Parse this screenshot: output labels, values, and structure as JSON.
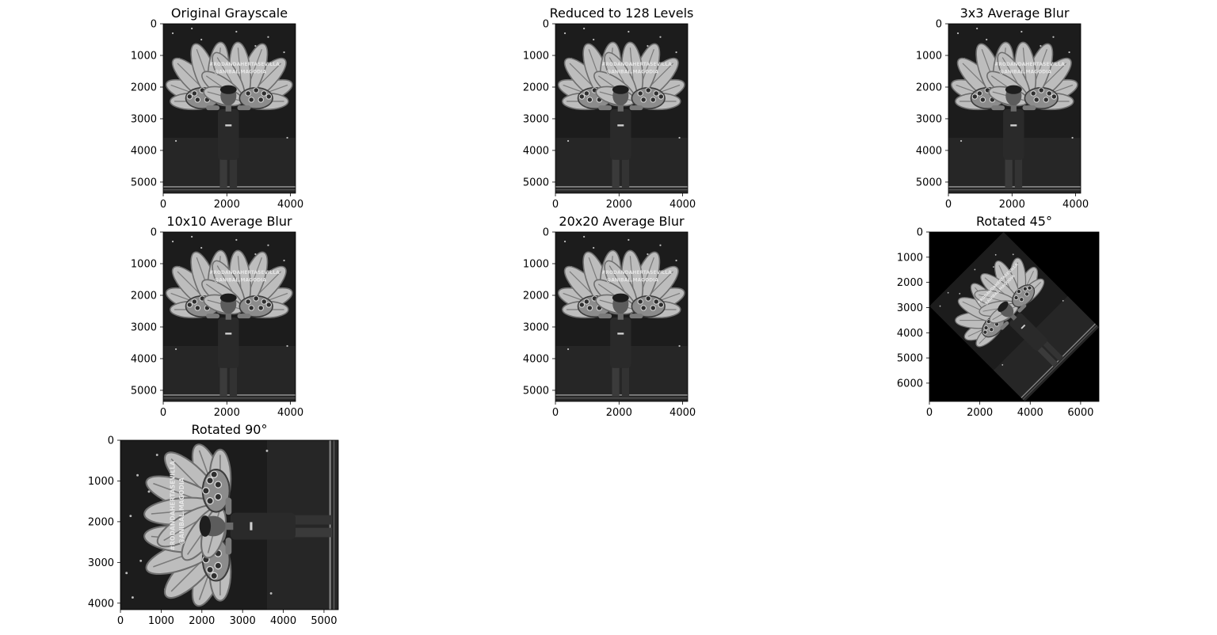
{
  "figure": {
    "layout": "3x3 grid of image panels",
    "background": "#ffffff"
  },
  "chart_data": [
    {
      "type": "image",
      "title": "Original Grayscale",
      "image_width": 4160,
      "image_height": 5352,
      "x_ticks": [
        0,
        2000,
        4000
      ],
      "y_ticks": [
        0,
        1000,
        2000,
        3000,
        4000,
        5000
      ],
      "transform": "none",
      "image_texts": [
        "#RODANDAHERTASEVILLA",
        "@ANIBAL.MAGODIA"
      ]
    },
    {
      "type": "image",
      "title": "Reduced to 128 Levels",
      "image_width": 4160,
      "image_height": 5352,
      "x_ticks": [
        0,
        2000,
        4000
      ],
      "y_ticks": [
        0,
        1000,
        2000,
        3000,
        4000,
        5000
      ],
      "transform": "none",
      "image_texts": [
        "#RODANDAHERTASEVILLA",
        "@ANIBAL.MAGODIA"
      ]
    },
    {
      "type": "image",
      "title": "3x3 Average Blur",
      "image_width": 4160,
      "image_height": 5352,
      "x_ticks": [
        0,
        2000,
        4000
      ],
      "y_ticks": [
        0,
        1000,
        2000,
        3000,
        4000,
        5000
      ],
      "transform": "none",
      "image_texts": [
        "#RODANDAHERTASEVILLA",
        "@ANIBAL.MAGODIA"
      ]
    },
    {
      "type": "image",
      "title": "10x10 Average Blur",
      "image_width": 4160,
      "image_height": 5352,
      "x_ticks": [
        0,
        2000,
        4000
      ],
      "y_ticks": [
        0,
        1000,
        2000,
        3000,
        4000,
        5000
      ],
      "transform": "none",
      "image_texts": [
        "#RODANDAHERTASEVILLA",
        "@ANIBAL.MAGODIA"
      ]
    },
    {
      "type": "image",
      "title": "20x20 Average Blur",
      "image_width": 4160,
      "image_height": 5352,
      "x_ticks": [
        0,
        2000,
        4000
      ],
      "y_ticks": [
        0,
        1000,
        2000,
        3000,
        4000,
        5000
      ],
      "transform": "none",
      "image_texts": [
        "#RODANDAHERTASEVILLA",
        "@ANIBAL.MAGODIA"
      ]
    },
    {
      "type": "image",
      "title": "Rotated 45°",
      "image_width": 6727,
      "image_height": 6727,
      "x_ticks": [
        0,
        2000,
        4000,
        6000
      ],
      "y_ticks": [
        0,
        1000,
        2000,
        3000,
        4000,
        5000,
        6000
      ],
      "transform": "rot45",
      "image_texts": [
        "#RODANDAHERTASEVILLA",
        "@ANIBAL.MAGODIA"
      ]
    },
    {
      "type": "image",
      "title": "Rotated 90°",
      "image_width": 5352,
      "image_height": 4160,
      "x_ticks": [
        0,
        1000,
        2000,
        3000,
        4000,
        5000
      ],
      "y_ticks": [
        0,
        1000,
        2000,
        3000,
        4000
      ],
      "transform": "rot90",
      "image_texts": [
        "#RODANDAHERTASEVILLA",
        "@ANIBAL.MAGODIA"
      ]
    }
  ]
}
